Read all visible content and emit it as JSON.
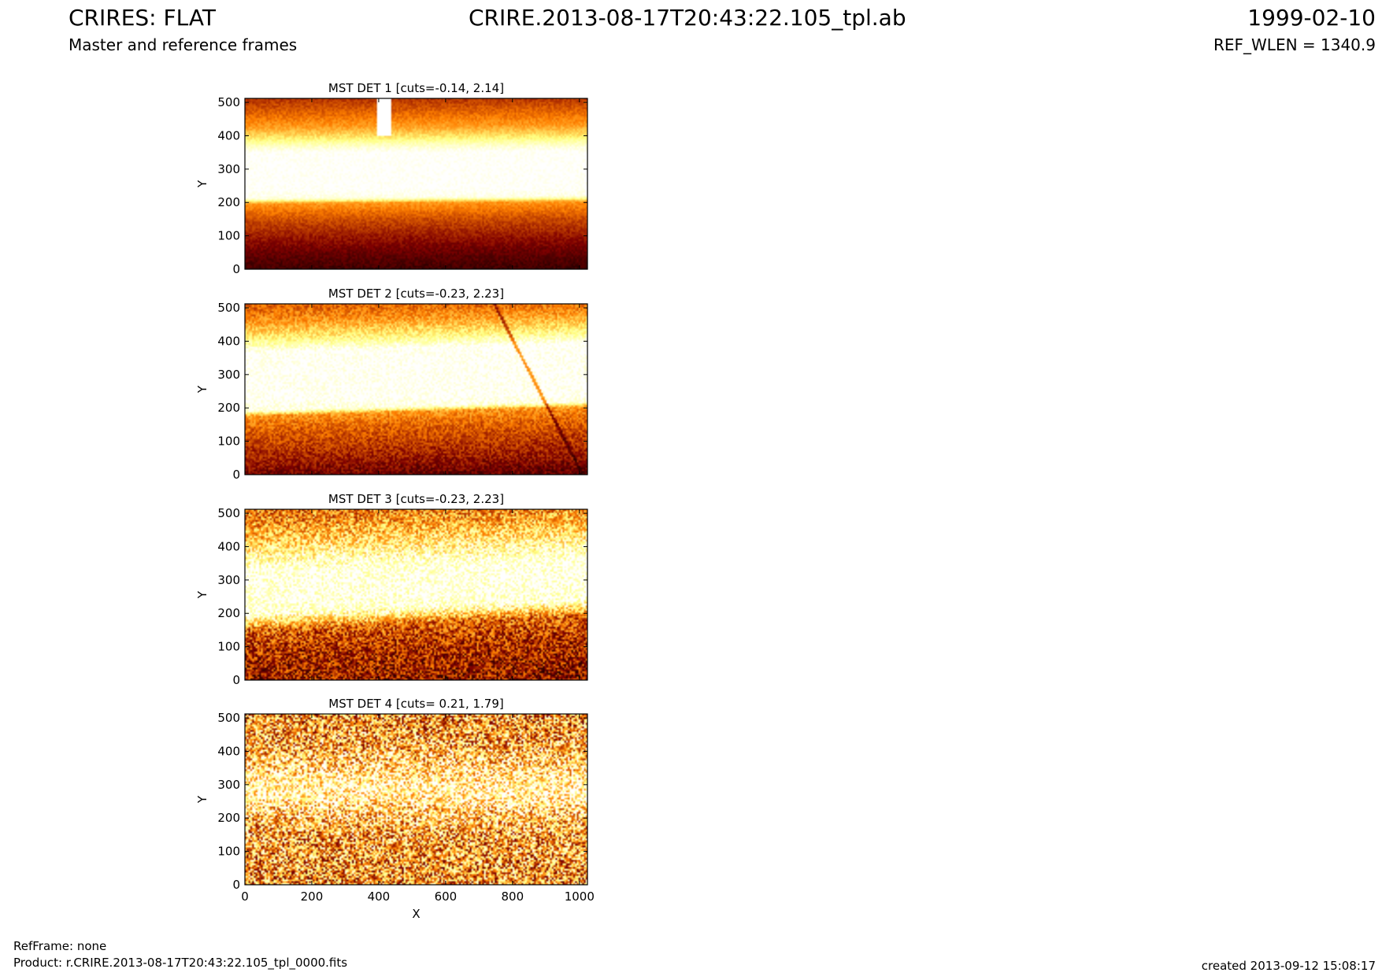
{
  "header": {
    "title": "CRIRES: FLAT",
    "subtitle": "Master and reference frames",
    "filename": "CRIRE.2013-08-17T20:43:22.105_tpl.ab",
    "date": "1999-02-10",
    "ref_wlen": "REF_WLEN = 1340.9"
  },
  "footer": {
    "refframe": "RefFrame: none",
    "product": "Product: r.CRIRE.2013-08-17T20:43:22.105_tpl_0000.fits",
    "created": "created 2013-09-12 15:08:17"
  },
  "colors": {
    "colormap": "afmhot",
    "low": "#3a0000",
    "mid": "#e02000",
    "high": "#ffffff"
  },
  "chart_data": [
    {
      "type": "heatmap",
      "title": "MST DET 1 [cuts=-0.14, 2.14]",
      "cuts": [
        -0.14,
        2.14
      ],
      "xlabel": "",
      "ylabel": "Y",
      "xlim": [
        0,
        1024
      ],
      "ylim": [
        0,
        512
      ],
      "xticks": [],
      "yticks": [
        0,
        100,
        200,
        300,
        400,
        500
      ],
      "profile_y": [
        0,
        60,
        150,
        200,
        215,
        240,
        300,
        350,
        370,
        395,
        430,
        470,
        512
      ],
      "profile_v": [
        0.12,
        0.22,
        0.4,
        0.55,
        0.95,
        1.0,
        1.0,
        1.0,
        0.9,
        0.72,
        0.55,
        0.45,
        0.35
      ],
      "tilt": 0.02,
      "noise": 0.05,
      "features": [
        {
          "kind": "vertical_streak",
          "x": 415,
          "y_from": 400,
          "y_to": 512
        }
      ]
    },
    {
      "type": "heatmap",
      "title": "MST DET 2 [cuts=-0.23, 2.23]",
      "cuts": [
        -0.23,
        2.23
      ],
      "xlabel": "",
      "ylabel": "Y",
      "xlim": [
        0,
        1024
      ],
      "ylim": [
        0,
        512
      ],
      "xticks": [],
      "yticks": [
        0,
        100,
        200,
        300,
        400,
        500
      ],
      "profile_y": [
        0,
        50,
        150,
        190,
        205,
        240,
        300,
        380,
        400,
        430,
        470,
        512
      ],
      "profile_v": [
        0.2,
        0.3,
        0.45,
        0.55,
        0.95,
        1.0,
        1.0,
        1.0,
        0.85,
        0.7,
        0.55,
        0.45
      ],
      "tilt": 0.08,
      "noise": 0.1,
      "features": [
        {
          "kind": "diagonal_line",
          "x0": 745,
          "y0": 512,
          "x1": 1010,
          "y1": 0
        }
      ]
    },
    {
      "type": "heatmap",
      "title": "MST DET 3 [cuts=-0.23, 2.23]",
      "cuts": [
        -0.23,
        2.23
      ],
      "xlabel": "",
      "ylabel": "Y",
      "xlim": [
        0,
        1024
      ],
      "ylim": [
        0,
        512
      ],
      "xticks": [],
      "yticks": [
        0,
        100,
        200,
        300,
        400,
        500
      ],
      "profile_y": [
        0,
        100,
        170,
        200,
        220,
        280,
        340,
        380,
        420,
        460,
        512
      ],
      "profile_v": [
        0.28,
        0.35,
        0.45,
        0.75,
        0.95,
        1.0,
        0.98,
        0.85,
        0.72,
        0.6,
        0.5
      ],
      "tilt": 0.12,
      "noise": 0.22,
      "features": []
    },
    {
      "type": "heatmap",
      "title": "MST DET 4 [cuts= 0.21, 1.79]",
      "cuts": [
        0.21,
        1.79
      ],
      "xlabel": "X",
      "ylabel": "Y",
      "xlim": [
        0,
        1024
      ],
      "ylim": [
        0,
        512
      ],
      "xticks": [
        0,
        200,
        400,
        600,
        800,
        1000
      ],
      "yticks": [
        0,
        100,
        200,
        300,
        400,
        500
      ],
      "profile_y": [
        0,
        150,
        220,
        260,
        290,
        330,
        380,
        430,
        512
      ],
      "profile_v": [
        0.55,
        0.6,
        0.72,
        0.85,
        0.88,
        0.8,
        0.68,
        0.6,
        0.56
      ],
      "tilt": 0.0,
      "noise": 0.38,
      "features": []
    }
  ]
}
